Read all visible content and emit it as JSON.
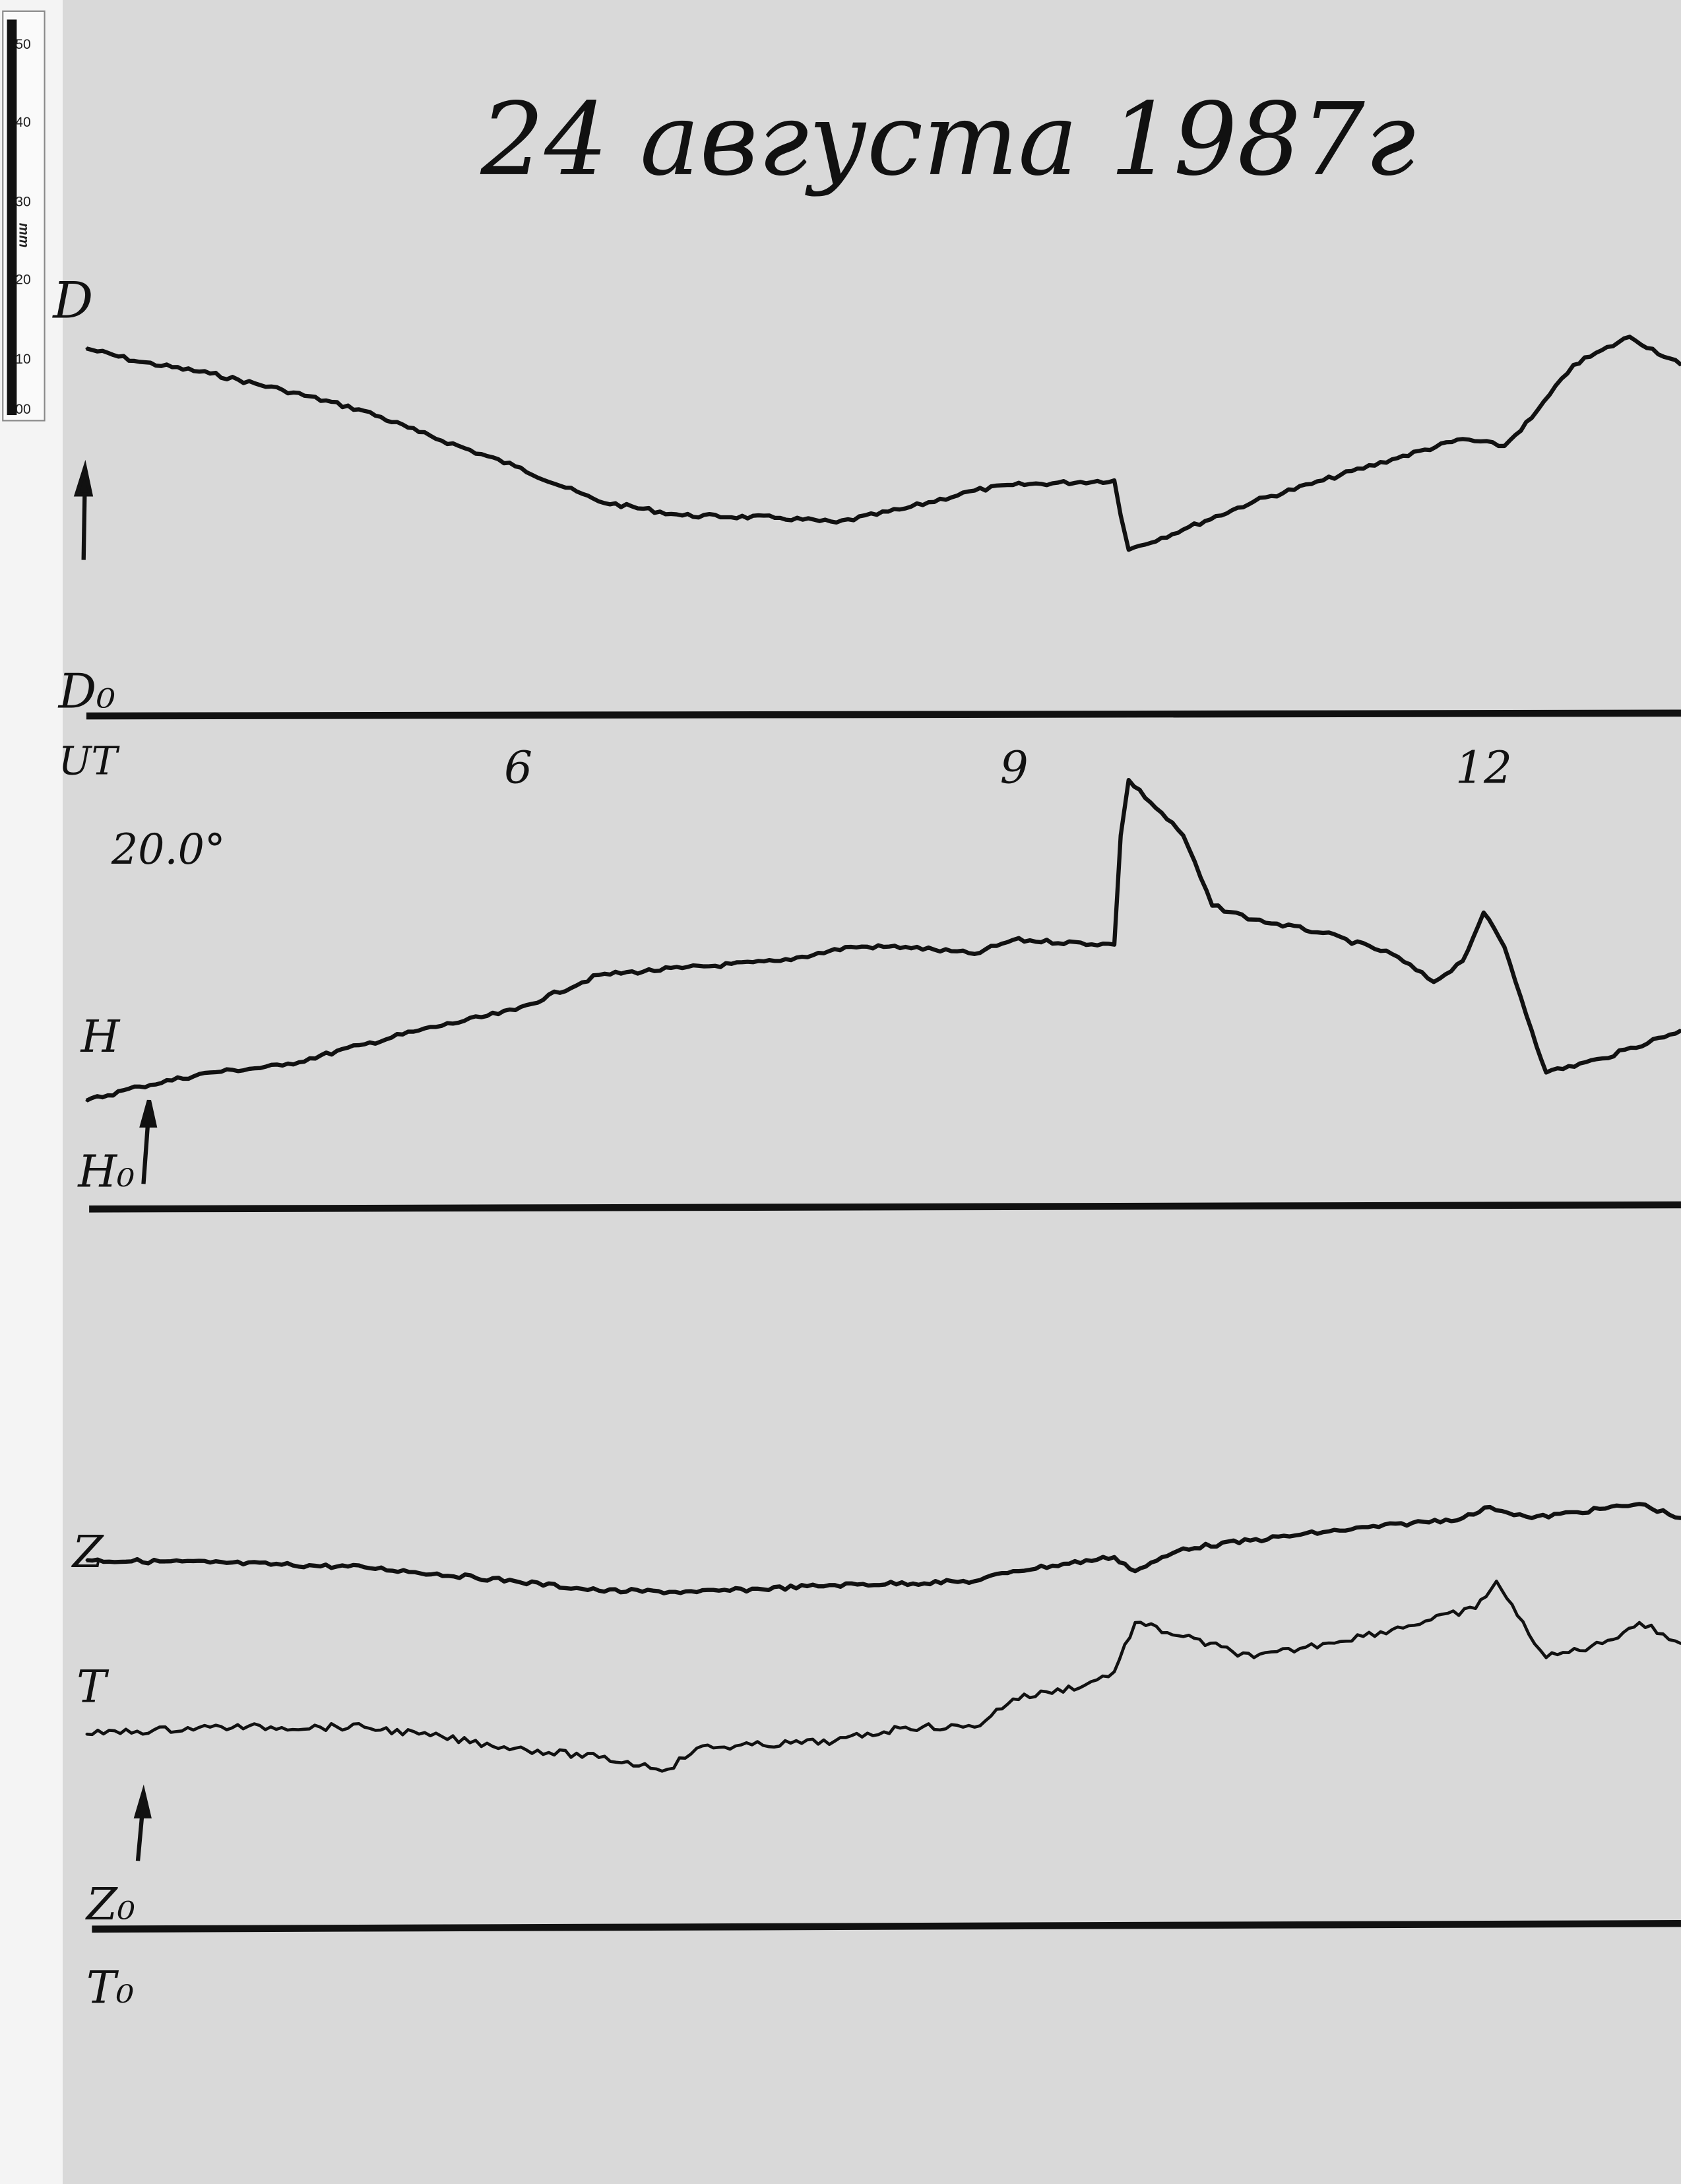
{
  "title": "24 августа 1987г",
  "ruler": {
    "labels": [
      "50",
      "40",
      "30",
      "20",
      "10",
      "00"
    ],
    "unit": "mm"
  },
  "labels": {
    "D": "D",
    "D0": "D₀",
    "UT": "UT",
    "scale_value": "20.0°",
    "H": "H",
    "H0": "H₀",
    "Z": "Z",
    "T": "T",
    "Z0": "Z₀",
    "T0": "T₀"
  },
  "chart_data": {
    "type": "line",
    "title": "24 августа 1987г",
    "xlabel": "UT",
    "x_ticks": [
      "6",
      "9",
      "12"
    ],
    "xlim": [
      3.33,
      13.26
    ],
    "y_unit": "mm",
    "series": [
      {
        "name": "D",
        "baseline": "D₀",
        "x": [
          3.33,
          3.66,
          4.1,
          4.55,
          5.06,
          5.4,
          6.0,
          6.52,
          7.04,
          7.65,
          8.0,
          8.43,
          8.86,
          9.1,
          9.73,
          9.77,
          9.82,
          10.16,
          10.6,
          11.03,
          11.46,
          11.9,
          12.16,
          12.33,
          12.59,
          12.94,
          13.26
        ],
        "y": [
          47.1,
          45.4,
          43.9,
          41.8,
          39.1,
          36.4,
          32.0,
          27.5,
          25.7,
          25.4,
          24.8,
          26.6,
          28.9,
          29.6,
          30.2,
          25.7,
          21.3,
          23.9,
          27.5,
          30.2,
          32.9,
          35.5,
          34.6,
          38.2,
          45.0,
          48.6,
          45.0
        ]
      },
      {
        "name": "H",
        "baseline": "H₀",
        "x": [
          3.33,
          3.66,
          4.1,
          4.55,
          5.06,
          5.4,
          6.0,
          6.52,
          7.04,
          7.65,
          8.09,
          8.43,
          8.86,
          9.1,
          9.73,
          9.77,
          9.82,
          10.16,
          10.34,
          10.6,
          11.03,
          11.46,
          11.72,
          11.9,
          12.03,
          12.16,
          12.33,
          12.42,
          12.77,
          13.26
        ],
        "y": [
          13.9,
          15.7,
          17.5,
          18.4,
          21.1,
          22.9,
          25.5,
          30.0,
          30.9,
          31.8,
          33.6,
          33.6,
          32.7,
          34.5,
          33.9,
          47.9,
          55.0,
          47.9,
          38.9,
          37.1,
          35.4,
          32.7,
          29.1,
          31.8,
          38.0,
          33.6,
          22.9,
          17.5,
          19.3,
          22.9
        ]
      },
      {
        "name": "Z",
        "baseline": "Z₀",
        "x": [
          3.33,
          4.1,
          5.06,
          6.0,
          6.52,
          7.13,
          7.99,
          8.86,
          9.1,
          9.73,
          9.86,
          10.16,
          11.03,
          11.9,
          12.07,
          12.33,
          13.0,
          13.26
        ],
        "y": [
          47.3,
          47.0,
          46.4,
          44.6,
          43.4,
          43.2,
          44.1,
          44.6,
          45.9,
          47.7,
          45.9,
          48.8,
          50.9,
          52.7,
          54.1,
          52.7,
          54.5,
          52.7
        ]
      },
      {
        "name": "T",
        "baseline": "T₀",
        "x": [
          3.33,
          4.1,
          5.06,
          5.4,
          6.0,
          6.52,
          6.95,
          7.13,
          7.99,
          8.43,
          8.86,
          9.1,
          9.55,
          9.73,
          9.86,
          10.16,
          10.6,
          11.03,
          11.46,
          11.98,
          12.11,
          12.24,
          12.42,
          12.77,
          13.0,
          13.26
        ],
        "y": [
          25.0,
          25.9,
          25.9,
          25.0,
          23.2,
          22.0,
          20.5,
          23.2,
          24.1,
          25.9,
          25.9,
          29.5,
          31.3,
          33.0,
          39.3,
          37.5,
          34.8,
          36.6,
          38.4,
          41.1,
          44.6,
          40.2,
          34.8,
          36.6,
          39.3,
          36.6
        ]
      }
    ],
    "grid": false,
    "legend": "none"
  },
  "colors": {
    "paper": "#d9d9d9",
    "trace": "#111111"
  }
}
